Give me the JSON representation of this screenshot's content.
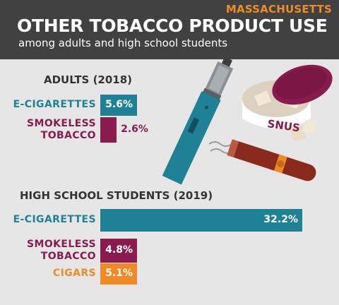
{
  "header": {
    "state": "MASSACHUSETTS",
    "title": "OTHER TOBACCO PRODUCT USE",
    "subtitle": "among adults and high school students"
  },
  "illustration": {
    "snus_label": "SNUS"
  },
  "colors": {
    "teal": "#1f8195",
    "maroon": "#8a1b4f",
    "orange": "#f08a24",
    "header_bg": "#414141",
    "background": "#e6e6e6"
  },
  "chart_data": [
    {
      "type": "bar",
      "orientation": "horizontal",
      "title": "ADULTS (2018)",
      "categories": [
        "E-CIGARETTES",
        "SMOKELESS TOBACCO"
      ],
      "values": [
        5.6,
        2.6
      ],
      "value_labels": [
        "5.6%",
        "2.6%"
      ],
      "bar_colors": [
        "#1f8195",
        "#8a1b4f"
      ]
    },
    {
      "type": "bar",
      "orientation": "horizontal",
      "title": "HIGH SCHOOL STUDENTS (2019)",
      "categories": [
        "E-CIGARETTES",
        "SMOKELESS TOBACCO",
        "CIGARS"
      ],
      "values": [
        32.2,
        4.8,
        5.1
      ],
      "value_labels": [
        "32.2%",
        "4.8%",
        "5.1%"
      ],
      "bar_colors": [
        "#1f8195",
        "#8a1b4f",
        "#f08a24"
      ]
    }
  ]
}
